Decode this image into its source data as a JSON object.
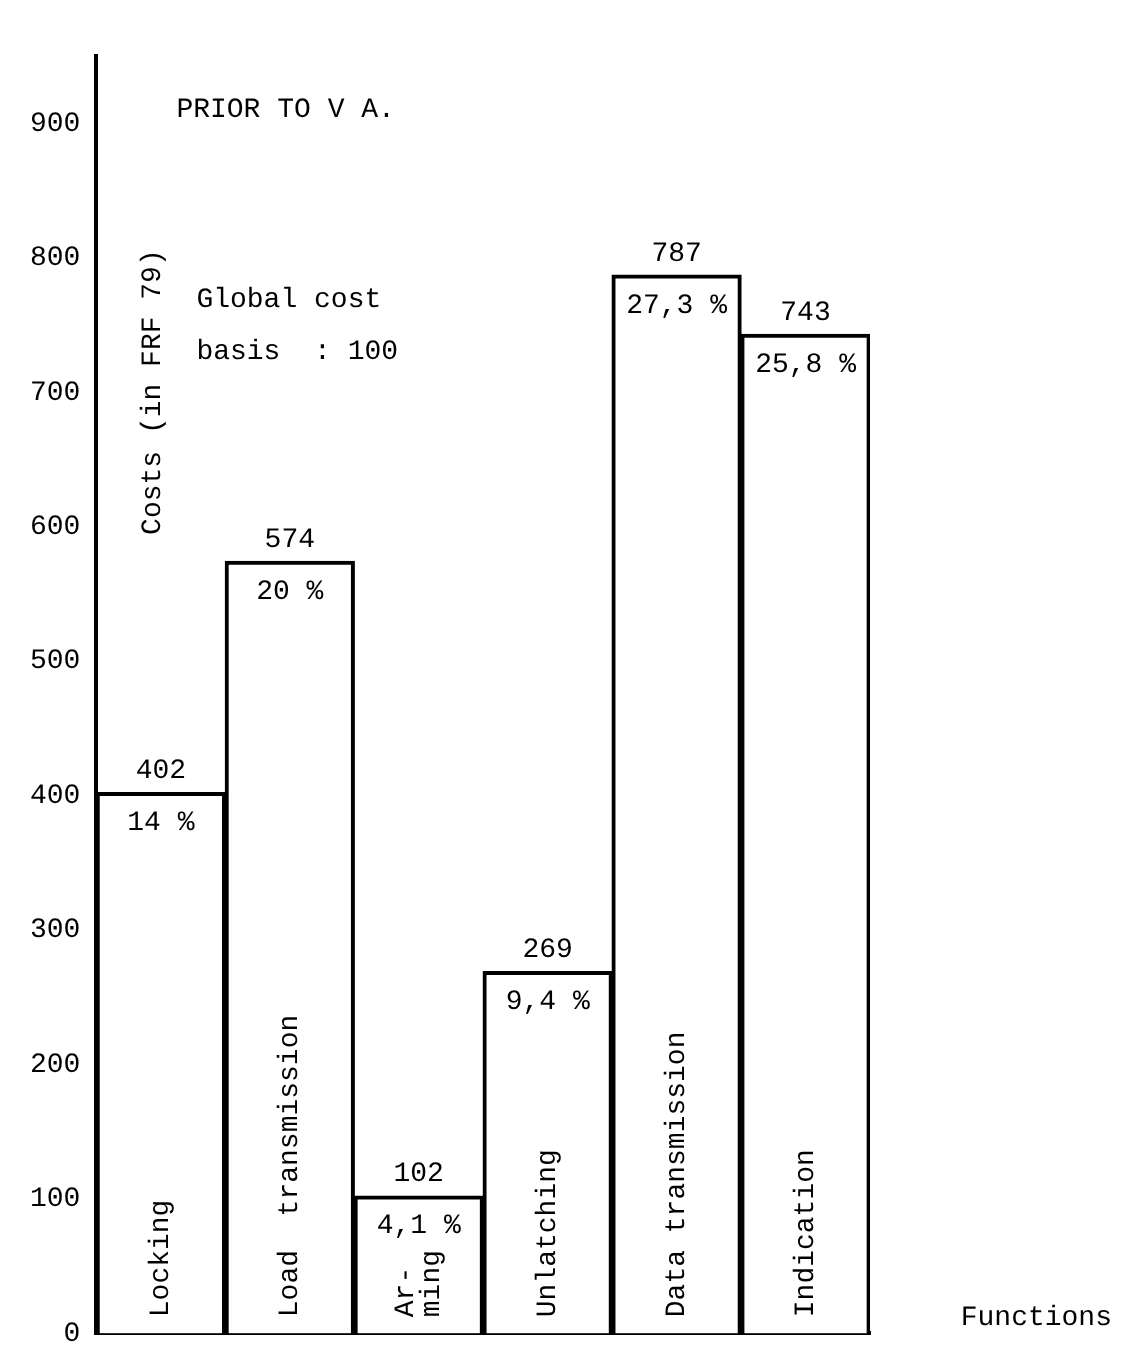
{
  "chart_data": {
    "type": "bar",
    "categories": [
      "Locking",
      "Load  transmission",
      "Ar-\nming",
      "Unlatching",
      "Data transmission",
      "Indication"
    ],
    "values": [
      402,
      574,
      102,
      269,
      787,
      743
    ],
    "color": "#ffffff",
    "ylim": [
      0,
      950
    ],
    "yticks": [
      0,
      100,
      200,
      300,
      400,
      500,
      600,
      700,
      800,
      900
    ],
    "ylabel": "Costs (in FRF 79)",
    "xlabel": "Functions",
    "data_labels": true,
    "grid": false,
    "legend": false,
    "annotations": [
      "PRIOR TO V A.",
      "Global cost\nbasis  : 100",
      {
        "text": "14 %",
        "x": "Locking",
        "y": 402
      },
      {
        "text": "20 %",
        "x": "Load  transmission",
        "y": 574
      },
      {
        "text": "4,1 %",
        "x": "Ar-\nming",
        "y": 102
      },
      {
        "text": "9,4 %",
        "x": "Unlatching",
        "y": 269
      },
      {
        "text": "27,3 %",
        "x": "Data transmission",
        "y": 787
      },
      {
        "text": "25,8 %",
        "x": "Indication",
        "y": 743
      }
    ]
  }
}
